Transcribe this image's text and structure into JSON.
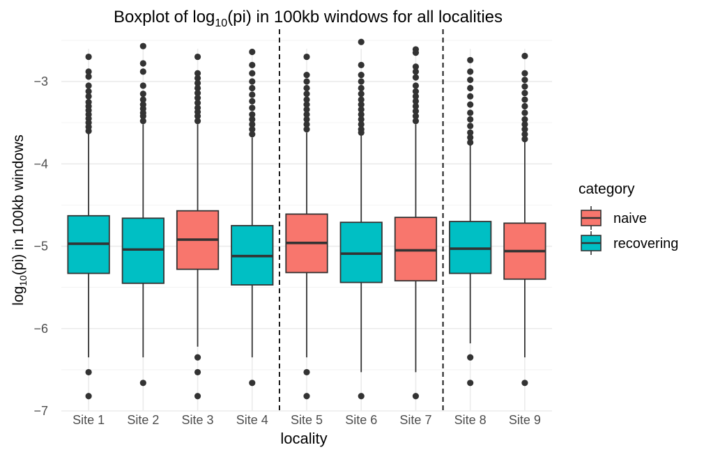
{
  "chart_data": {
    "type": "boxplot",
    "title": {
      "prefix": "Boxplot of log",
      "sub": "10",
      "suffix": "(pi) in 100kb windows for all localities"
    },
    "xlabel": "locality",
    "ylabel": {
      "prefix": "log",
      "sub": "10",
      "suffix": "(pi) in 100kb windows"
    },
    "ylim": [
      -7.0,
      -2.45
    ],
    "yticks": [
      -3,
      -4,
      -5,
      -6,
      -7
    ],
    "ytick_labels": [
      "−3",
      "−4",
      "−5",
      "−6",
      "−7"
    ],
    "grid": true,
    "vlines_after_categories": [
      "Site 4",
      "Site 7"
    ],
    "legend": {
      "title": "category",
      "position": "right",
      "entries": [
        {
          "name": "naive",
          "color": "#F8766D"
        },
        {
          "name": "recovering",
          "color": "#00BFC4"
        }
      ]
    },
    "categories": [
      "Site 1",
      "Site 2",
      "Site 3",
      "Site 4",
      "Site 5",
      "Site 6",
      "Site 7",
      "Site 8",
      "Site 9"
    ],
    "boxes": [
      {
        "category": "Site 1",
        "group": "recovering",
        "whisker_low": -6.35,
        "q1": -5.33,
        "median": -4.97,
        "q3": -4.63,
        "whisker_high": -3.62,
        "outliers": [
          -6.53,
          -6.82,
          -2.7,
          -2.88,
          -2.94,
          -3.05,
          -3.12,
          -3.18,
          -3.25,
          -3.3,
          -3.35,
          -3.4,
          -3.45,
          -3.5,
          -3.55,
          -3.6
        ]
      },
      {
        "category": "Site 2",
        "group": "recovering",
        "whisker_low": -6.35,
        "q1": -5.45,
        "median": -5.04,
        "q3": -4.66,
        "whisker_high": -3.52,
        "outliers": [
          -6.66,
          -2.57,
          -2.78,
          -2.88,
          -3.05,
          -3.15,
          -3.22,
          -3.28,
          -3.33,
          -3.38,
          -3.42,
          -3.48
        ]
      },
      {
        "category": "Site 3",
        "group": "naive",
        "whisker_low": -6.22,
        "q1": -5.28,
        "median": -4.92,
        "q3": -4.57,
        "whisker_high": -3.52,
        "outliers": [
          -6.35,
          -6.53,
          -6.82,
          -2.7,
          -2.9,
          -2.96,
          -3.02,
          -3.08,
          -3.14,
          -3.2,
          -3.26,
          -3.32,
          -3.37,
          -3.42,
          -3.48
        ]
      },
      {
        "category": "Site 4",
        "group": "recovering",
        "whisker_low": -6.35,
        "q1": -5.47,
        "median": -5.12,
        "q3": -4.75,
        "whisker_high": -3.68,
        "outliers": [
          -6.66,
          -2.64,
          -2.8,
          -2.9,
          -3.0,
          -3.08,
          -3.16,
          -3.24,
          -3.32,
          -3.4,
          -3.46,
          -3.52,
          -3.58,
          -3.64
        ]
      },
      {
        "category": "Site 5",
        "group": "naive",
        "whisker_low": -6.35,
        "q1": -5.32,
        "median": -4.96,
        "q3": -4.61,
        "whisker_high": -3.62,
        "outliers": [
          -6.53,
          -6.82,
          -2.7,
          -2.92,
          -3.0,
          -3.08,
          -3.15,
          -3.22,
          -3.28,
          -3.34,
          -3.4,
          -3.46,
          -3.52,
          -3.58
        ]
      },
      {
        "category": "Site 6",
        "group": "recovering",
        "whisker_low": -6.53,
        "q1": -5.44,
        "median": -5.09,
        "q3": -4.71,
        "whisker_high": -3.65,
        "outliers": [
          -6.82,
          -2.52,
          -2.8,
          -2.92,
          -3.0,
          -3.08,
          -3.15,
          -3.22,
          -3.28,
          -3.34,
          -3.4,
          -3.46,
          -3.52,
          -3.58,
          -3.62
        ]
      },
      {
        "category": "Site 7",
        "group": "naive",
        "whisker_low": -6.53,
        "q1": -5.42,
        "median": -5.05,
        "q3": -4.65,
        "whisker_high": -3.52,
        "outliers": [
          -6.82,
          -2.61,
          -2.65,
          -2.82,
          -2.88,
          -2.95,
          -3.05,
          -3.12,
          -3.18,
          -3.24,
          -3.3,
          -3.36,
          -3.42,
          -3.48
        ]
      },
      {
        "category": "Site 8",
        "group": "recovering",
        "whisker_low": -6.18,
        "q1": -5.33,
        "median": -5.03,
        "q3": -4.7,
        "whisker_high": -3.76,
        "outliers": [
          -6.35,
          -6.66,
          -2.74,
          -2.88,
          -2.98,
          -3.08,
          -3.18,
          -3.28,
          -3.38,
          -3.46,
          -3.54,
          -3.62,
          -3.68,
          -3.74
        ]
      },
      {
        "category": "Site 9",
        "group": "naive",
        "whisker_low": -6.35,
        "q1": -5.4,
        "median": -5.06,
        "q3": -4.72,
        "whisker_high": -3.72,
        "outliers": [
          -6.66,
          -2.69,
          -2.9,
          -2.98,
          -3.06,
          -3.14,
          -3.22,
          -3.3,
          -3.38,
          -3.46,
          -3.52,
          -3.58,
          -3.64,
          -3.7
        ]
      }
    ]
  }
}
